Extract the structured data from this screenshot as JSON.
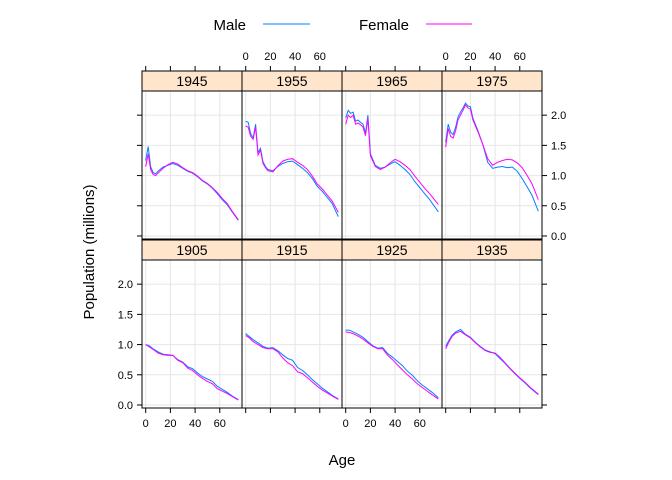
{
  "chart_data": {
    "type": "line",
    "layout": "lattice 4x2",
    "ylabel": "Population (millions)",
    "xlabel": "Age",
    "xlim": [
      -3,
      78
    ],
    "ylim": [
      -0.05,
      2.4
    ],
    "xticks": [
      0,
      20,
      40,
      60
    ],
    "yticks": [
      0.0,
      0.5,
      1.0,
      1.5,
      2.0
    ],
    "legend": {
      "position": "top",
      "entries": [
        {
          "name": "Male",
          "color": "#0080ff"
        },
        {
          "name": "Female",
          "color": "#ff00ff"
        }
      ]
    },
    "grid": true,
    "strip_color": "#ffe5cc",
    "panels": [
      {
        "label": "1905",
        "row": 0,
        "col": 0,
        "x": [
          0,
          3,
          6,
          10,
          14,
          18,
          22,
          26,
          30,
          34,
          38,
          42,
          46,
          50,
          54,
          58,
          62,
          66,
          70,
          75
        ],
        "male": [
          1.0,
          0.98,
          0.93,
          0.88,
          0.84,
          0.83,
          0.82,
          0.75,
          0.71,
          0.63,
          0.6,
          0.53,
          0.47,
          0.43,
          0.39,
          0.31,
          0.26,
          0.21,
          0.15,
          0.09
        ],
        "female": [
          1.0,
          0.96,
          0.92,
          0.86,
          0.83,
          0.82,
          0.82,
          0.74,
          0.7,
          0.61,
          0.57,
          0.5,
          0.44,
          0.39,
          0.35,
          0.27,
          0.23,
          0.19,
          0.14,
          0.08
        ]
      },
      {
        "label": "1915",
        "row": 0,
        "col": 1,
        "x": [
          0,
          3,
          6,
          10,
          14,
          18,
          22,
          26,
          30,
          34,
          38,
          42,
          46,
          50,
          54,
          58,
          62,
          66,
          70,
          75
        ],
        "male": [
          1.18,
          1.13,
          1.08,
          1.03,
          0.97,
          0.94,
          0.95,
          0.9,
          0.83,
          0.77,
          0.74,
          0.62,
          0.57,
          0.5,
          0.42,
          0.35,
          0.28,
          0.22,
          0.16,
          0.1
        ],
        "female": [
          1.15,
          1.11,
          1.05,
          1.0,
          0.95,
          0.93,
          0.93,
          0.88,
          0.78,
          0.7,
          0.65,
          0.55,
          0.52,
          0.45,
          0.38,
          0.31,
          0.25,
          0.2,
          0.15,
          0.09
        ]
      },
      {
        "label": "1925",
        "row": 0,
        "col": 2,
        "x": [
          0,
          3,
          6,
          10,
          14,
          18,
          22,
          26,
          30,
          34,
          38,
          42,
          46,
          50,
          54,
          58,
          62,
          66,
          70,
          75
        ],
        "male": [
          1.24,
          1.24,
          1.21,
          1.17,
          1.12,
          1.05,
          0.98,
          0.94,
          0.95,
          0.85,
          0.79,
          0.72,
          0.65,
          0.56,
          0.49,
          0.4,
          0.33,
          0.27,
          0.21,
          0.12
        ],
        "female": [
          1.21,
          1.2,
          1.18,
          1.14,
          1.09,
          1.03,
          0.97,
          0.93,
          0.93,
          0.82,
          0.75,
          0.66,
          0.58,
          0.5,
          0.43,
          0.35,
          0.29,
          0.23,
          0.17,
          0.1
        ]
      },
      {
        "label": "1935",
        "row": 0,
        "col": 3,
        "x": [
          0,
          2,
          5,
          8,
          12,
          16,
          20,
          24,
          28,
          32,
          36,
          40,
          44,
          48,
          52,
          56,
          60,
          64,
          68,
          75
        ],
        "male": [
          0.97,
          1.05,
          1.15,
          1.21,
          1.25,
          1.17,
          1.12,
          1.04,
          0.97,
          0.91,
          0.88,
          0.85,
          0.77,
          0.69,
          0.6,
          0.52,
          0.44,
          0.37,
          0.29,
          0.17
        ],
        "female": [
          0.93,
          1.02,
          1.13,
          1.19,
          1.22,
          1.16,
          1.11,
          1.03,
          0.96,
          0.9,
          0.87,
          0.86,
          0.79,
          0.7,
          0.61,
          0.53,
          0.45,
          0.38,
          0.3,
          0.18
        ]
      },
      {
        "label": "1945",
        "row": 1,
        "col": 0,
        "x": [
          0,
          2,
          4,
          6,
          8,
          10,
          14,
          18,
          22,
          26,
          30,
          34,
          38,
          42,
          46,
          50,
          54,
          58,
          62,
          66,
          70,
          75
        ],
        "male": [
          1.25,
          1.48,
          1.15,
          1.05,
          1.03,
          1.07,
          1.14,
          1.17,
          1.2,
          1.17,
          1.12,
          1.07,
          1.04,
          0.98,
          0.91,
          0.86,
          0.79,
          0.7,
          0.6,
          0.52,
          0.4,
          0.26
        ],
        "female": [
          1.15,
          1.36,
          1.1,
          1.02,
          1.0,
          1.04,
          1.12,
          1.18,
          1.22,
          1.19,
          1.13,
          1.08,
          1.05,
          0.99,
          0.92,
          0.87,
          0.8,
          0.72,
          0.62,
          0.54,
          0.41,
          0.27
        ]
      },
      {
        "label": "1955",
        "row": 1,
        "col": 1,
        "x": [
          0,
          2,
          4,
          6,
          8,
          10,
          12,
          14,
          16,
          18,
          22,
          26,
          30,
          34,
          38,
          42,
          46,
          50,
          54,
          58,
          62,
          66,
          70,
          75
        ],
        "male": [
          1.9,
          1.88,
          1.7,
          1.62,
          1.85,
          1.38,
          1.45,
          1.23,
          1.15,
          1.1,
          1.08,
          1.15,
          1.2,
          1.23,
          1.24,
          1.18,
          1.12,
          1.05,
          0.95,
          0.82,
          0.74,
          0.64,
          0.54,
          0.32
        ],
        "female": [
          1.82,
          1.8,
          1.65,
          1.6,
          1.8,
          1.34,
          1.42,
          1.2,
          1.13,
          1.08,
          1.06,
          1.16,
          1.24,
          1.27,
          1.28,
          1.22,
          1.17,
          1.1,
          0.99,
          0.86,
          0.78,
          0.68,
          0.58,
          0.39
        ]
      },
      {
        "label": "1965",
        "row": 1,
        "col": 2,
        "x": [
          0,
          2,
          4,
          6,
          8,
          10,
          12,
          14,
          16,
          18,
          20,
          24,
          28,
          32,
          36,
          40,
          44,
          48,
          52,
          56,
          60,
          64,
          68,
          75
        ],
        "male": [
          1.95,
          2.08,
          2.03,
          2.05,
          1.9,
          1.92,
          1.88,
          1.85,
          1.7,
          2.0,
          1.36,
          1.17,
          1.12,
          1.14,
          1.19,
          1.23,
          1.17,
          1.1,
          1.02,
          0.9,
          0.8,
          0.7,
          0.6,
          0.4
        ],
        "female": [
          1.85,
          2.0,
          1.96,
          2.0,
          1.85,
          1.87,
          1.84,
          1.8,
          1.66,
          1.94,
          1.33,
          1.15,
          1.1,
          1.14,
          1.21,
          1.27,
          1.23,
          1.17,
          1.1,
          0.99,
          0.89,
          0.79,
          0.7,
          0.52
        ]
      },
      {
        "label": "1975",
        "row": 1,
        "col": 3,
        "x": [
          0,
          2,
          4,
          6,
          8,
          10,
          12,
          14,
          16,
          18,
          20,
          22,
          26,
          30,
          34,
          38,
          42,
          46,
          50,
          54,
          58,
          62,
          66,
          70,
          75
        ],
        "male": [
          1.55,
          1.85,
          1.72,
          1.68,
          1.8,
          1.97,
          2.05,
          2.12,
          2.2,
          2.15,
          2.14,
          1.95,
          1.75,
          1.52,
          1.22,
          1.12,
          1.14,
          1.15,
          1.13,
          1.14,
          1.07,
          0.95,
          0.81,
          0.67,
          0.41
        ],
        "female": [
          1.47,
          1.78,
          1.65,
          1.62,
          1.74,
          1.92,
          2.0,
          2.08,
          2.17,
          2.12,
          2.1,
          1.92,
          1.73,
          1.52,
          1.28,
          1.17,
          1.22,
          1.25,
          1.27,
          1.26,
          1.21,
          1.13,
          1.0,
          0.86,
          0.6
        ]
      }
    ]
  }
}
